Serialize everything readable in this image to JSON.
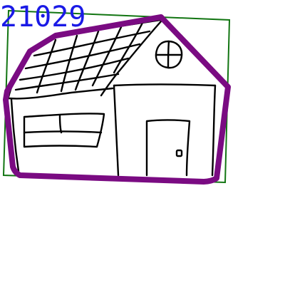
{
  "sketch": {
    "id_label": "21029",
    "id_label_color": "#1a1ae6",
    "bounding_box_color": "#127512",
    "outline_color": "#7a0b82",
    "ink_color": "#000000",
    "subject": "house-drawing"
  }
}
